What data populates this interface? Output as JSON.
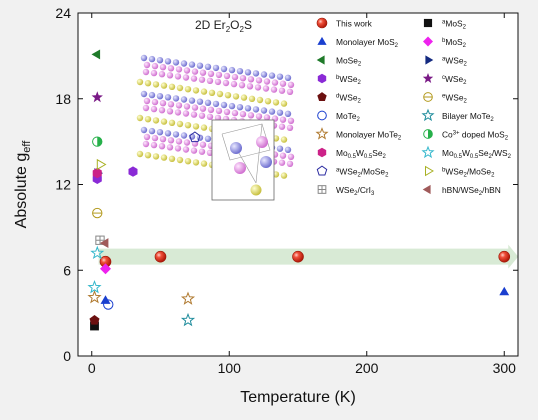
{
  "chart_data": {
    "type": "scatter",
    "title": "",
    "xlabel": "Temperature (K)",
    "ylabel_main": "Absolute g",
    "ylabel_sub": "eff",
    "xlim": [
      -10,
      310
    ],
    "ylim": [
      0,
      24
    ],
    "xticks": [
      0,
      100,
      200,
      300
    ],
    "yticks": [
      0,
      6,
      12,
      18,
      24
    ],
    "grid": false,
    "legend_position": "inside-top-right",
    "inset": {
      "label_prefix": "2D Er",
      "label_sub1": "2",
      "label_mid": "O",
      "label_sub2": "2",
      "label_suffix": "S"
    },
    "arrow_fill": "#d8ead5",
    "series": [
      {
        "key": "this",
        "label_parts": [
          [
            "This work",
            ""
          ]
        ],
        "marker": "sphere",
        "color": "#e03020",
        "points": [
          [
            10,
            6.6
          ],
          [
            50,
            6.95
          ],
          [
            150,
            6.95
          ],
          [
            300,
            6.95
          ]
        ]
      },
      {
        "key": "mos2a",
        "label_parts": [
          [
            "a",
            "sup"
          ],
          [
            "MoS",
            ""
          ],
          [
            "2",
            "sub"
          ]
        ],
        "marker": "square",
        "color": "#111111",
        "points": [
          [
            2,
            2.1
          ]
        ]
      },
      {
        "key": "mono_mos2",
        "label_parts": [
          [
            "Monolayer  MoS",
            ""
          ],
          [
            "2",
            "sub"
          ]
        ],
        "marker": "tri-up",
        "color": "#1a3fcf",
        "points": [
          [
            10,
            3.9
          ],
          [
            300,
            4.5
          ]
        ]
      },
      {
        "key": "mos2b",
        "label_parts": [
          [
            "b",
            "sup"
          ],
          [
            "MoS",
            ""
          ],
          [
            "2",
            "sub"
          ]
        ],
        "marker": "diamond",
        "color": "#ee22ee",
        "points": [
          [
            10,
            6.1
          ]
        ]
      },
      {
        "key": "mose2",
        "label_parts": [
          [
            "MoSe",
            ""
          ],
          [
            "2",
            "sub"
          ]
        ],
        "marker": "tri-left",
        "color": "#1f7a2a",
        "points": [
          [
            4,
            21.1
          ]
        ]
      },
      {
        "key": "wse2a",
        "label_parts": [
          [
            "a",
            "sup"
          ],
          [
            "WSe",
            ""
          ],
          [
            "2",
            "sub"
          ]
        ],
        "marker": "tri-right",
        "color": "#142a80",
        "points": [
          [
            4,
            12.8
          ]
        ]
      },
      {
        "key": "wse2b",
        "label_parts": [
          [
            "b",
            "sup"
          ],
          [
            "WSe",
            ""
          ],
          [
            "2",
            "sub"
          ]
        ],
        "marker": "hexagon",
        "color": "#8a2ad6",
        "points": [
          [
            4,
            12.4
          ],
          [
            30,
            12.9
          ]
        ]
      },
      {
        "key": "wse2c",
        "label_parts": [
          [
            "c",
            "sup"
          ],
          [
            "WSe",
            ""
          ],
          [
            "2",
            "sub"
          ]
        ],
        "marker": "star",
        "color": "#7a1a86",
        "points": [
          [
            4,
            18.1
          ]
        ]
      },
      {
        "key": "wse2d",
        "label_parts": [
          [
            "d",
            "sup"
          ],
          [
            "WSe",
            ""
          ],
          [
            "2",
            "sub"
          ]
        ],
        "marker": "pentagon",
        "color": "#6b1010",
        "points": [
          [
            2,
            2.5
          ]
        ]
      },
      {
        "key": "wse2e",
        "label_parts": [
          [
            "e",
            "sup"
          ],
          [
            "WSe",
            ""
          ],
          [
            "2",
            "sub"
          ]
        ],
        "marker": "circle-line",
        "color": "#b39a1e",
        "points": [
          [
            4,
            10.0
          ]
        ]
      },
      {
        "key": "mote2",
        "label_parts": [
          [
            "MoTe",
            ""
          ],
          [
            "2",
            "sub"
          ]
        ],
        "marker": "circle-open",
        "color": "#1a3fcf",
        "points": [
          [
            12,
            3.6
          ]
        ]
      },
      {
        "key": "bilayer_mote2",
        "label_parts": [
          [
            "Bilayer MoTe",
            ""
          ],
          [
            "2",
            "sub"
          ]
        ],
        "marker": "star-open",
        "color": "#1e8c9c",
        "points": [
          [
            70,
            2.5
          ]
        ]
      },
      {
        "key": "mono_mote2",
        "label_parts": [
          [
            "Monolayer MoTe",
            ""
          ],
          [
            "2",
            "sub"
          ]
        ],
        "marker": "star-open",
        "color": "#b07a30",
        "points": [
          [
            2,
            4.1
          ],
          [
            70,
            4.0
          ]
        ]
      },
      {
        "key": "co_mos2",
        "label_parts": [
          [
            "Co",
            ""
          ],
          [
            "3+",
            "sup"
          ],
          [
            " doped MoS",
            ""
          ],
          [
            "2",
            "sub"
          ]
        ],
        "marker": "circle-half",
        "color": "#26b04a",
        "points": [
          [
            4,
            15.0
          ]
        ]
      },
      {
        "key": "mow_se",
        "label_parts": [
          [
            "Mo",
            ""
          ],
          [
            "0.5",
            "sub"
          ],
          [
            "W",
            ""
          ],
          [
            "0.5",
            "sub"
          ],
          [
            "Se",
            ""
          ],
          [
            "2",
            "sub"
          ]
        ],
        "marker": "hexagon",
        "color": "#cc2288",
        "points": [
          [
            4,
            12.8
          ]
        ]
      },
      {
        "key": "mow_het",
        "label_parts": [
          [
            "Mo",
            ""
          ],
          [
            "0.5",
            "sub"
          ],
          [
            "W",
            ""
          ],
          [
            "0.5",
            "sub"
          ],
          [
            "Se",
            ""
          ],
          [
            "2",
            "sub"
          ],
          [
            "/WS",
            ""
          ],
          [
            "2",
            "sub"
          ]
        ],
        "marker": "star-open",
        "color": "#35b8cc",
        "points": [
          [
            2,
            4.8
          ],
          [
            4,
            7.2
          ]
        ]
      },
      {
        "key": "wse2_mose2_a",
        "label_parts": [
          [
            "a",
            "sup"
          ],
          [
            "WSe",
            ""
          ],
          [
            "2",
            "sub"
          ],
          [
            "/MoSe",
            ""
          ],
          [
            "2",
            "sub"
          ]
        ],
        "marker": "pentagon-open",
        "color": "#2a2aa0",
        "points": [
          [
            75,
            15.3
          ]
        ]
      },
      {
        "key": "wse2_mose2_b",
        "label_parts": [
          [
            "b",
            "sup"
          ],
          [
            "WSe",
            ""
          ],
          [
            "2",
            "sub"
          ],
          [
            "/MoSe",
            ""
          ],
          [
            "2",
            "sub"
          ]
        ],
        "marker": "tri-right-open",
        "color": "#a8b022",
        "points": [
          [
            6,
            13.4
          ]
        ]
      },
      {
        "key": "wse2_cri3",
        "label_parts": [
          [
            "WSe",
            ""
          ],
          [
            "2",
            "sub"
          ],
          [
            "/CrI",
            ""
          ],
          [
            "3",
            "sub"
          ]
        ],
        "marker": "square-plus",
        "color": "#888888",
        "points": [
          [
            6,
            8.1
          ]
        ]
      },
      {
        "key": "hbn",
        "label_parts": [
          [
            "hBN/WSe",
            ""
          ],
          [
            "2",
            "sub"
          ],
          [
            "/hBN",
            ""
          ]
        ],
        "marker": "tri-left",
        "color": "#a05a5a",
        "points": [
          [
            10,
            7.9
          ]
        ]
      }
    ]
  }
}
